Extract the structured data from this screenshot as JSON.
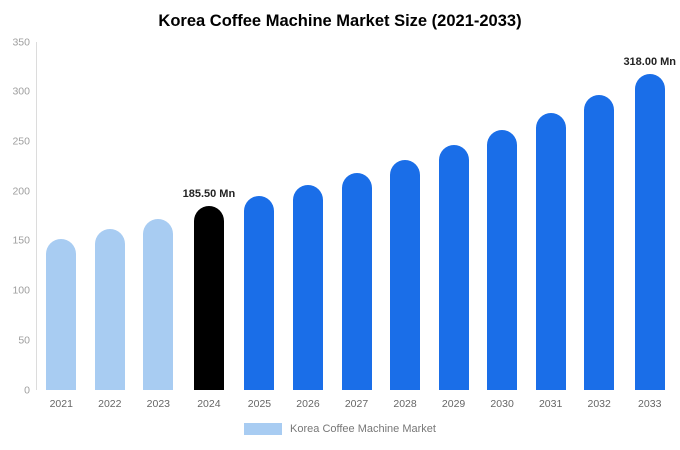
{
  "chart_data": {
    "type": "bar",
    "title": "Korea Coffee Machine Market Size (2021-2033)",
    "categories": [
      "2021",
      "2022",
      "2023",
      "2024",
      "2025",
      "2026",
      "2027",
      "2028",
      "2029",
      "2030",
      "2031",
      "2032",
      "2033"
    ],
    "values": [
      152,
      162,
      172,
      185.5,
      195,
      206,
      218,
      231,
      246,
      262,
      279,
      297,
      318
    ],
    "unit": "Mn",
    "ylim": [
      0,
      350
    ],
    "yticks": [
      0,
      50,
      100,
      150,
      200,
      250,
      300,
      350
    ],
    "grid": false,
    "legend_position": "bottom",
    "colors": {
      "historical": "#a8ccf2",
      "highlight": "#000000",
      "forecast": "#1a6ee8"
    },
    "bar_colors": [
      "#a8ccf2",
      "#a8ccf2",
      "#a8ccf2",
      "#000000",
      "#1a6ee8",
      "#1a6ee8",
      "#1a6ee8",
      "#1a6ee8",
      "#1a6ee8",
      "#1a6ee8",
      "#1a6ee8",
      "#1a6ee8",
      "#1a6ee8"
    ],
    "annotations": [
      {
        "category": "2024",
        "text": "185.50 Mn"
      },
      {
        "category": "2033",
        "text": "318.00 Mn"
      }
    ],
    "legend": [
      {
        "label": "Korea Coffee Machine Market",
        "color": "#a8ccf2"
      }
    ]
  }
}
